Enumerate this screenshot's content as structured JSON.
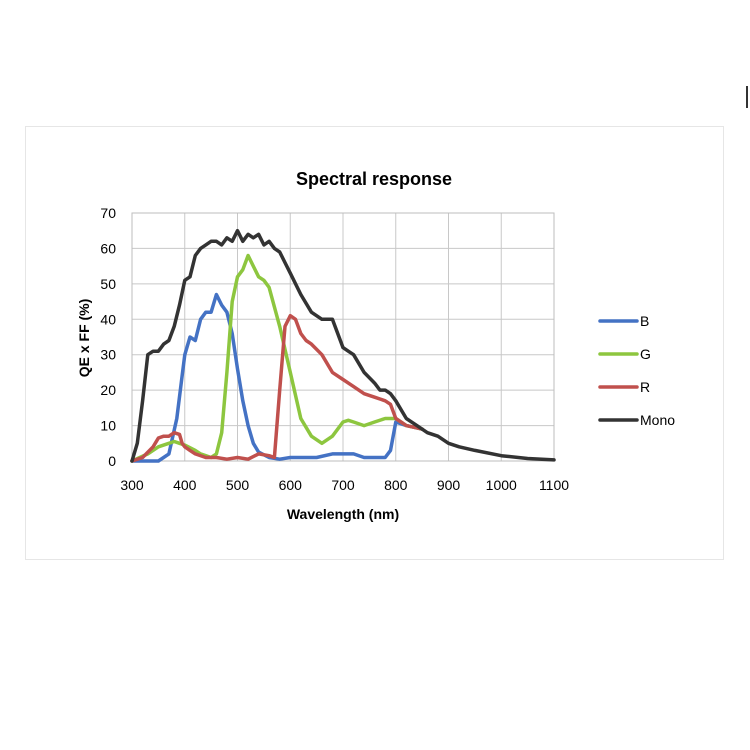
{
  "chart_data": {
    "type": "line",
    "title": "Spectral response",
    "xlabel": "Wavelength (nm)",
    "ylabel": "QE x FF (%)",
    "xlim": [
      300,
      1100
    ],
    "ylim": [
      0,
      70
    ],
    "xticks": [
      300,
      400,
      500,
      600,
      700,
      800,
      900,
      1000,
      1100
    ],
    "yticks": [
      0,
      10,
      20,
      30,
      40,
      50,
      60,
      70
    ],
    "grid": true,
    "legend_position": "right",
    "series": [
      {
        "name": "B",
        "color": "#4472c4",
        "x": [
          300,
          350,
          370,
          385,
          395,
          400,
          410,
          420,
          430,
          440,
          450,
          460,
          470,
          480,
          490,
          500,
          510,
          520,
          530,
          540,
          560,
          580,
          600,
          650,
          680,
          700,
          720,
          740,
          760,
          780,
          790,
          800,
          820,
          850
        ],
        "y": [
          0,
          0,
          2,
          12,
          24,
          30,
          35,
          34,
          40,
          42,
          42,
          47,
          44,
          42,
          36,
          26,
          17,
          10,
          5,
          2.5,
          1,
          0.5,
          1,
          1,
          2,
          2,
          2,
          1,
          1,
          1,
          3,
          11,
          10,
          9
        ]
      },
      {
        "name": "G",
        "color": "#8dc63f",
        "x": [
          300,
          330,
          350,
          370,
          380,
          390,
          400,
          420,
          430,
          440,
          450,
          460,
          470,
          480,
          490,
          500,
          510,
          520,
          530,
          540,
          550,
          560,
          580,
          600,
          620,
          640,
          660,
          680,
          700,
          710,
          720,
          740,
          760,
          780,
          800,
          820,
          850
        ],
        "y": [
          0,
          2,
          4,
          5,
          5.5,
          5,
          4.5,
          3,
          2,
          1.5,
          1,
          2,
          8,
          25,
          45,
          52,
          54,
          58,
          55,
          52,
          51,
          49,
          38,
          25,
          12,
          7,
          5,
          7,
          11,
          11.5,
          11,
          10,
          11,
          12,
          12,
          10,
          9
        ]
      },
      {
        "name": "R",
        "color": "#c0504d",
        "x": [
          300,
          320,
          340,
          350,
          360,
          370,
          380,
          390,
          395,
          400,
          410,
          420,
          440,
          460,
          480,
          500,
          520,
          540,
          560,
          570,
          580,
          590,
          600,
          610,
          620,
          630,
          640,
          660,
          680,
          700,
          720,
          740,
          760,
          780,
          790,
          800,
          820,
          850
        ],
        "y": [
          0,
          1,
          4,
          6.5,
          7,
          7,
          8,
          7.5,
          5,
          4,
          3,
          2,
          1,
          1,
          0.5,
          1,
          0.5,
          2,
          1.5,
          1,
          20,
          38,
          41,
          40,
          36,
          34,
          33,
          30,
          25,
          23,
          21,
          19,
          18,
          17,
          16,
          12,
          10,
          9
        ]
      },
      {
        "name": "Mono",
        "color": "#333333",
        "x": [
          300,
          310,
          320,
          330,
          340,
          350,
          360,
          370,
          380,
          390,
          400,
          410,
          420,
          430,
          440,
          450,
          460,
          470,
          480,
          490,
          500,
          510,
          520,
          530,
          540,
          550,
          560,
          570,
          580,
          590,
          600,
          620,
          640,
          660,
          680,
          700,
          710,
          720,
          740,
          760,
          770,
          780,
          790,
          800,
          820,
          840,
          860,
          880,
          900,
          920,
          950,
          1000,
          1050,
          1100
        ],
        "y": [
          0,
          5,
          17,
          30,
          31,
          31,
          33,
          34,
          38,
          44,
          51,
          52,
          58,
          60,
          61,
          62,
          62,
          61,
          63,
          62,
          65,
          62,
          64,
          63,
          64,
          61,
          62,
          60,
          59,
          56,
          53,
          47,
          42,
          40,
          40,
          32,
          31,
          30,
          25,
          22,
          20,
          20,
          19,
          17,
          12,
          10,
          8,
          7,
          5,
          4,
          3,
          1.5,
          0.7,
          0.3
        ]
      }
    ]
  }
}
